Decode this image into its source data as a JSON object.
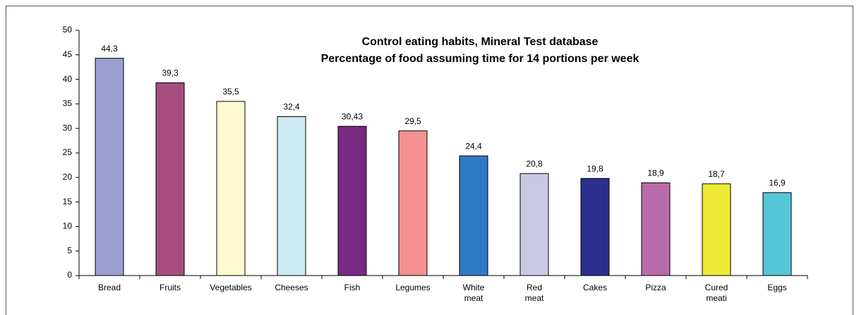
{
  "chart_data": {
    "type": "bar",
    "title": "Control eating habits, Mineral Test database",
    "subtitle": "Percentage of food assuming time for 14 portions per week",
    "categories": [
      "Bread",
      "Fruits",
      "Vegetables",
      "Cheeses",
      "Fish",
      "Legumes",
      "White meat",
      "Red meat",
      "Cakes",
      "Pizza",
      "Cured meati",
      "Eggs"
    ],
    "values": [
      44.3,
      39.3,
      35.5,
      32.4,
      30.43,
      29.5,
      24.4,
      20.8,
      19.8,
      18.9,
      18.7,
      16.9
    ],
    "value_labels": [
      "44,3",
      "39,3",
      "35,5",
      "32,4",
      "30,43",
      "29,5",
      "24,4",
      "20,8",
      "19,8",
      "18,9",
      "18,7",
      "16,9"
    ],
    "colors": [
      "#9b9fd0",
      "#a64d7e",
      "#fdf9d0",
      "#cdeaf2",
      "#7a2a82",
      "#f49090",
      "#2f7ac4",
      "#c9c9e6",
      "#2b2f8e",
      "#b96aaa",
      "#eeea33",
      "#55c6d8"
    ],
    "ylim": [
      0,
      50
    ],
    "yticks": [
      0,
      5,
      10,
      15,
      20,
      25,
      30,
      35,
      40,
      45,
      50
    ],
    "grid": false
  }
}
